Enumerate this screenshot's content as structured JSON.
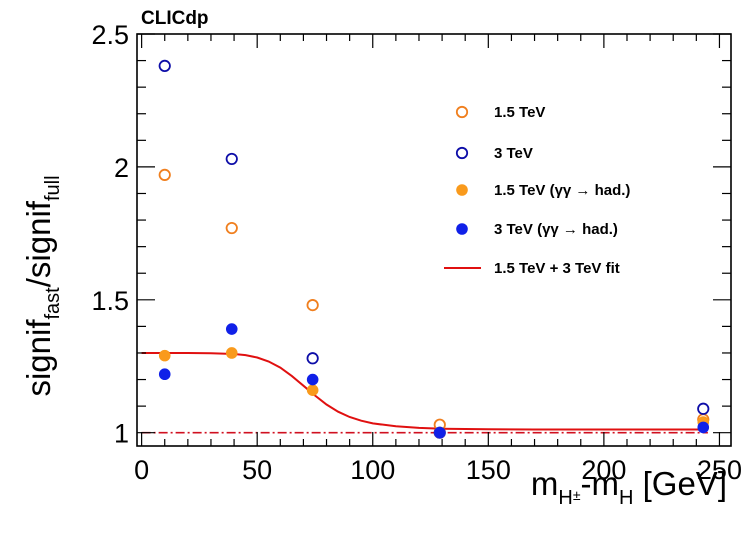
{
  "colors": {
    "orange": "#f07f1e",
    "blue": "#0d0da8",
    "orange_fill": "#f99a1c",
    "blue_fill": "#1020e8",
    "fit": "#e01010",
    "reference_line": "#d01020"
  },
  "corner_label": "CLICdp",
  "chart_data": {
    "type": "scatter",
    "xlabel": {
      "m": "m",
      "sub1": "H",
      "sup1": "±",
      "dash": "-m",
      "sub2": "H",
      "unit": " [GeV]"
    },
    "ylabel": {
      "a": "signif",
      "sub_a": "fast",
      "slash": "/signif",
      "sub_b": "full"
    },
    "xlim": [
      -2,
      255
    ],
    "ylim": [
      0.95,
      2.5
    ],
    "x_ticks": [
      "0",
      "50",
      "100",
      "150",
      "200",
      "250"
    ],
    "x_tick_values": [
      0,
      50,
      100,
      150,
      200,
      250
    ],
    "y_ticks": [
      "1",
      "1.5",
      "2",
      "2.5"
    ],
    "y_tick_values": [
      1,
      1.5,
      2,
      2.5
    ],
    "reference_line_y": 1.0,
    "series": [
      {
        "name": "1.5 TeV",
        "marker": "open-circle",
        "color": "#f07f1e",
        "points": [
          [
            10,
            1.97
          ],
          [
            39,
            1.77
          ],
          [
            74,
            1.48
          ],
          [
            129,
            1.03
          ],
          [
            243,
            1.05
          ]
        ]
      },
      {
        "name": "3 TeV",
        "marker": "open-circle",
        "color": "#0d0da8",
        "points": [
          [
            10,
            2.38
          ],
          [
            39,
            2.03
          ],
          [
            74,
            1.28
          ],
          [
            129,
            1.0
          ],
          [
            243,
            1.09
          ]
        ]
      },
      {
        "name": "1.5 TeV (γγ → had.)",
        "marker": "filled-circle",
        "color": "#f99a1c",
        "points": [
          [
            10,
            1.29
          ],
          [
            39,
            1.3
          ],
          [
            74,
            1.16
          ],
          [
            129,
            1.0
          ],
          [
            243,
            1.04
          ]
        ]
      },
      {
        "name": "3 TeV (γγ → had.)",
        "marker": "filled-circle",
        "color": "#1020e8",
        "points": [
          [
            10,
            1.22
          ],
          [
            39,
            1.39
          ],
          [
            74,
            1.2
          ],
          [
            129,
            1.0
          ],
          [
            243,
            1.02
          ]
        ]
      }
    ],
    "fit": {
      "name": "1.5 TeV + 3 TeV fit",
      "color": "#e01010",
      "x": [
        0,
        10,
        20,
        30,
        40,
        45,
        50,
        55,
        60,
        65,
        70,
        75,
        80,
        85,
        90,
        95,
        100,
        110,
        120,
        130,
        150,
        170,
        200,
        225,
        245
      ],
      "y": [
        1.3,
        1.3,
        1.3,
        1.299,
        1.296,
        1.292,
        1.283,
        1.268,
        1.245,
        1.213,
        1.177,
        1.14,
        1.106,
        1.079,
        1.059,
        1.045,
        1.035,
        1.024,
        1.018,
        1.015,
        1.013,
        1.012,
        1.012,
        1.012,
        1.012
      ]
    },
    "legend": {
      "position": "top-right",
      "entries": [
        "1.5 TeV",
        "3 TeV",
        "1.5 TeV (γγ → had.)",
        "3 TeV (γγ → had.)",
        "1.5 TeV + 3 TeV fit"
      ]
    },
    "grid": false
  }
}
